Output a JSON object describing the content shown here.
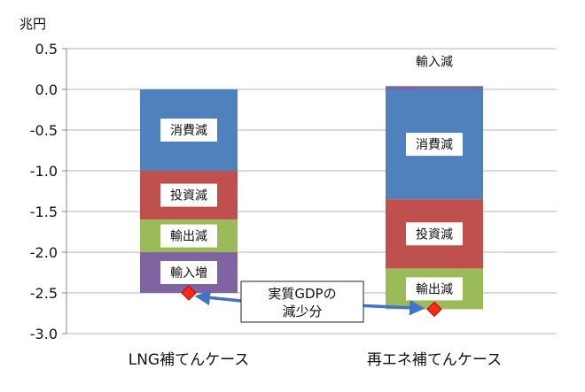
{
  "chart_data": {
    "type": "bar",
    "stacked": true,
    "unit": "兆円",
    "ylim": [
      -3.0,
      0.5
    ],
    "yticks": [
      "0.5",
      "0.0",
      "-0.5",
      "-1.0",
      "-1.5",
      "-2.0",
      "-2.5",
      "-3.0"
    ],
    "categories": [
      "LNG補てんケース",
      "再エネ補てんケース"
    ],
    "series": [
      {
        "name": "消費減",
        "color": "#4f81bd",
        "values": [
          -1.0,
          -1.35
        ]
      },
      {
        "name": "投資減",
        "color": "#c0504d",
        "values": [
          -0.6,
          -0.85
        ]
      },
      {
        "name": "輸出減",
        "color": "#9bbb59",
        "values": [
          -0.4,
          -0.5
        ]
      },
      {
        "name": "輸入",
        "color": "#8064a2",
        "values": [
          -0.5,
          0.04
        ]
      }
    ],
    "segment_labels": [
      [
        "消費減",
        "投資減",
        "輸出減",
        "輸入増"
      ],
      [
        "消費減",
        "投資減",
        "輸出減",
        "輸入減"
      ]
    ],
    "gdp_decline": [
      -2.5,
      -2.7
    ],
    "callout": [
      "実質GDPの",
      "減少分"
    ],
    "grid": true
  }
}
